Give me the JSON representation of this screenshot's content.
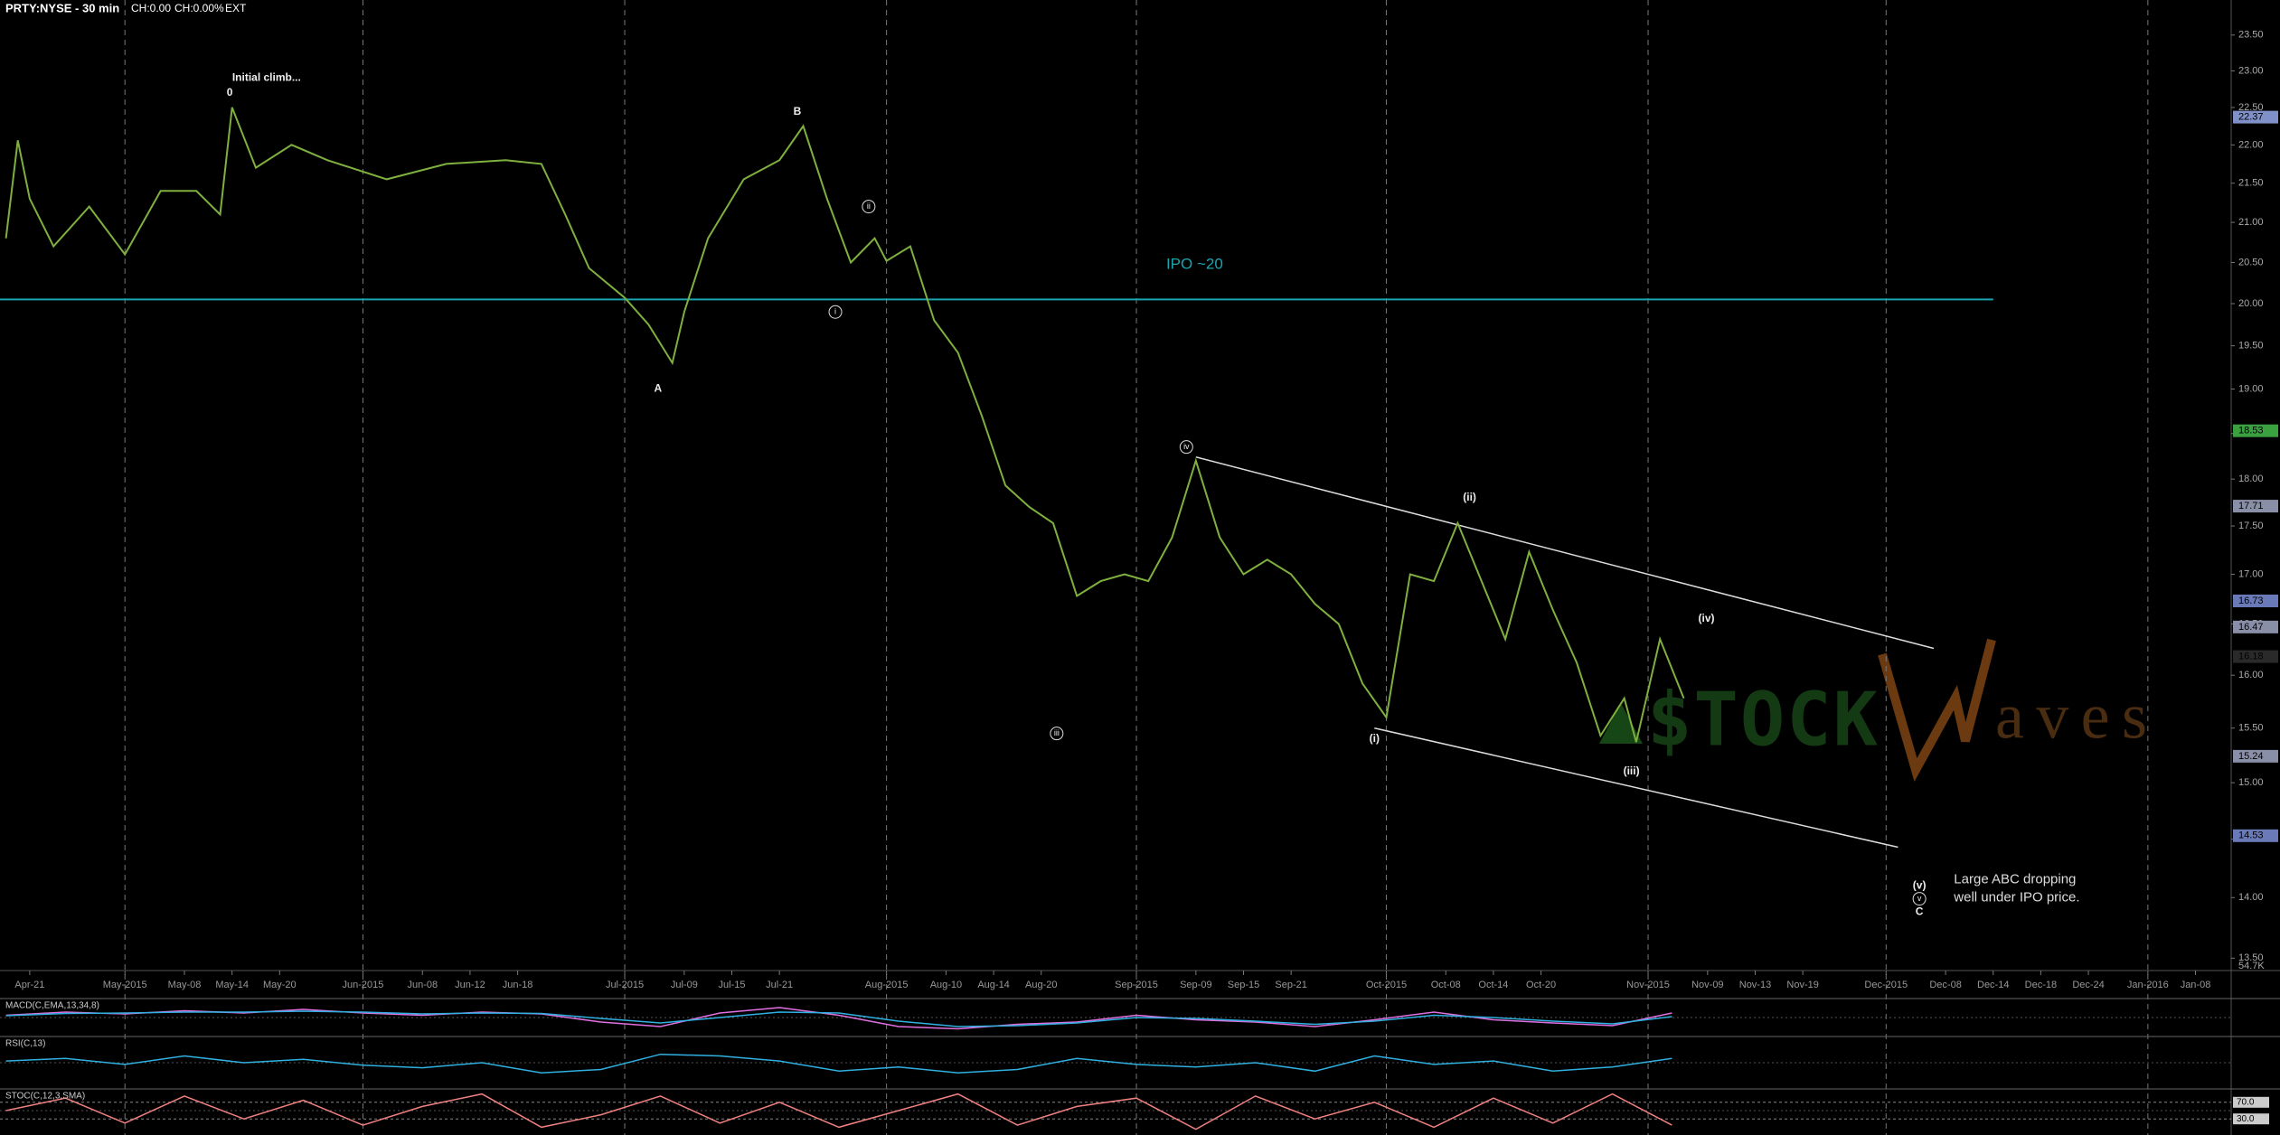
{
  "chart_data": {
    "type": "line",
    "title": "PRTY:NYSE - 30 min",
    "header_fields": [
      "CH:0.00",
      "CH:0.00%",
      "EXT"
    ],
    "log_scale": true,
    "xgrid": true,
    "color": "#7fb03f",
    "xlim": [
      -2.5,
      185
    ],
    "ylim": [
      13.4,
      24
    ],
    "xticks": [
      {
        "value": 0,
        "label": "Apr-21"
      },
      {
        "value": 8,
        "label": "May-2015"
      },
      {
        "value": 13,
        "label": "May-08"
      },
      {
        "value": 17,
        "label": "May-14"
      },
      {
        "value": 21,
        "label": "May-20"
      },
      {
        "value": 28,
        "label": "Jun-2015"
      },
      {
        "value": 33,
        "label": "Jun-08"
      },
      {
        "value": 37,
        "label": "Jun-12"
      },
      {
        "value": 41,
        "label": "Jun-18"
      },
      {
        "value": 50,
        "label": "Jul-2015"
      },
      {
        "value": 55,
        "label": "Jul-09"
      },
      {
        "value": 59,
        "label": "Jul-15"
      },
      {
        "value": 63,
        "label": "Jul-21"
      },
      {
        "value": 72,
        "label": "Aug-2015"
      },
      {
        "value": 77,
        "label": "Aug-10"
      },
      {
        "value": 81,
        "label": "Aug-14"
      },
      {
        "value": 85,
        "label": "Aug-20"
      },
      {
        "value": 93,
        "label": "Sep-2015"
      },
      {
        "value": 98,
        "label": "Sep-09"
      },
      {
        "value": 102,
        "label": "Sep-15"
      },
      {
        "value": 106,
        "label": "Sep-21"
      },
      {
        "value": 114,
        "label": "Oct-2015"
      },
      {
        "value": 119,
        "label": "Oct-08"
      },
      {
        "value": 123,
        "label": "Oct-14"
      },
      {
        "value": 127,
        "label": "Oct-20"
      },
      {
        "value": 136,
        "label": "Nov-2015"
      },
      {
        "value": 141,
        "label": "Nov-09"
      },
      {
        "value": 145,
        "label": "Nov-13"
      },
      {
        "value": 149,
        "label": "Nov-19"
      },
      {
        "value": 156,
        "label": "Dec-2015"
      },
      {
        "value": 161,
        "label": "Dec-08"
      },
      {
        "value": 165,
        "label": "Dec-14"
      },
      {
        "value": 169,
        "label": "Dec-18"
      },
      {
        "value": 173,
        "label": "Dec-24"
      },
      {
        "value": 178,
        "label": "Jan-2016"
      },
      {
        "value": 182,
        "label": "Jan-08"
      }
    ],
    "yticks": [
      {
        "value": 13.5,
        "label": "13.50"
      },
      {
        "value": 14,
        "label": "14.00"
      },
      {
        "value": 14.5,
        "label": "14.50"
      },
      {
        "value": 15,
        "label": "15.00"
      },
      {
        "value": 15.5,
        "label": "15.50"
      },
      {
        "value": 16,
        "label": "16.00"
      },
      {
        "value": 16.5,
        "label": "16.50"
      },
      {
        "value": 17,
        "label": "17.00"
      },
      {
        "value": 17.5,
        "label": "17.50"
      },
      {
        "value": 18,
        "label": "18.00"
      },
      {
        "value": 18.5,
        "label": "18.50"
      },
      {
        "value": 19,
        "label": "19.00"
      },
      {
        "value": 19.5,
        "label": "19.50"
      },
      {
        "value": 20,
        "label": "20.00"
      },
      {
        "value": 20.5,
        "label": "20.50"
      },
      {
        "value": 21,
        "label": "21.00"
      },
      {
        "value": 21.5,
        "label": "21.50"
      },
      {
        "value": 22,
        "label": "22.00"
      },
      {
        "value": 22.5,
        "label": "22.50"
      },
      {
        "value": 23,
        "label": "23.00"
      },
      {
        "value": 23.5,
        "label": "23.50"
      }
    ],
    "x": [
      -2,
      -1,
      0,
      2,
      5,
      8,
      11,
      14,
      16,
      17,
      19,
      22,
      25,
      30,
      35,
      40,
      43,
      45,
      47,
      50,
      52,
      54,
      55,
      57,
      60,
      63,
      65,
      67,
      69,
      71,
      72,
      74,
      76,
      78,
      80,
      82,
      84,
      86,
      88,
      90,
      92,
      94,
      96,
      98,
      100,
      102,
      104,
      106,
      108,
      110,
      112,
      114,
      116,
      118,
      120,
      122,
      124,
      126,
      128,
      130,
      132,
      134,
      135,
      137,
      139
    ],
    "values": [
      20.8,
      22.06,
      21.3,
      20.7,
      21.2,
      20.6,
      21.4,
      21.4,
      21.1,
      22.5,
      21.7,
      22.0,
      21.8,
      21.55,
      21.75,
      21.8,
      21.75,
      21.1,
      20.43,
      20.07,
      19.75,
      19.3,
      19.9,
      20.8,
      21.55,
      21.8,
      22.25,
      21.3,
      20.5,
      20.8,
      20.52,
      20.7,
      19.8,
      19.42,
      18.7,
      17.93,
      17.7,
      17.53,
      16.78,
      16.93,
      17.0,
      16.93,
      17.38,
      18.2,
      17.38,
      17.0,
      17.15,
      17.0,
      16.7,
      16.5,
      15.92,
      15.6,
      17.0,
      16.93,
      17.53,
      16.93,
      16.35,
      17.23,
      16.64,
      16.12,
      15.43,
      15.78,
      15.37,
      16.35,
      15.78
    ],
    "price_markers": [
      {
        "value": 22.37,
        "color": "#8090c8"
      },
      {
        "value": 18.53,
        "color": "#3aa040"
      },
      {
        "value": 17.71,
        "color": "#8a8fa8"
      },
      {
        "value": 16.73,
        "color": "#6a7ab8"
      },
      {
        "value": 16.47,
        "color": "#8a8fa8"
      },
      {
        "value": 16.18,
        "color": "#2a2a2a"
      },
      {
        "value": 15.24,
        "color": "#8a8fa8"
      },
      {
        "value": 14.53,
        "color": "#6a7ab8"
      }
    ],
    "volume_label": "54.7K",
    "ipo_line": {
      "value": 20.05,
      "x_end": 165,
      "color": "#1aa6b0",
      "label": "IPO ~20",
      "label_x": 95.5,
      "label_y": 20.47
    },
    "channel": [
      {
        "x": [
          98,
          160
        ],
        "values": [
          18.24,
          16.26
        ]
      },
      {
        "x": [
          113,
          157
        ],
        "values": [
          15.5,
          14.43
        ]
      }
    ],
    "annotations": [
      {
        "text": "Initial climb...",
        "x": 19.9,
        "y": 22.9
      },
      {
        "text": "0",
        "x": 16.8,
        "y": 22.7
      },
      {
        "text": "B",
        "x": 64.5,
        "y": 22.44
      },
      {
        "text": "A",
        "x": 52.8,
        "y": 19.0
      },
      {
        "text": "i",
        "x": 67.7,
        "y": 19.9,
        "circled": true
      },
      {
        "text": "ii",
        "x": 70.5,
        "y": 21.2,
        "circled": true
      },
      {
        "text": "iii",
        "x": 86.3,
        "y": 15.45,
        "circled": true
      },
      {
        "text": "iv",
        "x": 97.2,
        "y": 18.35,
        "circled": true
      },
      {
        "text": "(i)",
        "x": 113,
        "y": 15.4
      },
      {
        "text": "(ii)",
        "x": 121,
        "y": 17.8
      },
      {
        "text": "(iii)",
        "x": 134.6,
        "y": 15.1
      },
      {
        "text": "(iv)",
        "x": 140.9,
        "y": 16.55
      },
      {
        "text": "(v)",
        "x": 158.8,
        "y": 14.1
      },
      {
        "text": "v",
        "x": 158.8,
        "y": 13.99,
        "circled": true
      },
      {
        "text": "C",
        "x": 158.8,
        "y": 13.88
      }
    ],
    "note": {
      "lines": [
        "Large ABC dropping",
        "well under IPO price."
      ],
      "x": 161.7,
      "y": 14.15
    },
    "watermark": {
      "left": "$TOCK",
      "right": "aves"
    },
    "indicator_x": [
      -2,
      3,
      8,
      13,
      18,
      23,
      28,
      33,
      38,
      43,
      48,
      53,
      58,
      63,
      68,
      73,
      78,
      83,
      88,
      93,
      98,
      103,
      108,
      113,
      118,
      123,
      128,
      133,
      138
    ],
    "indicators": [
      {
        "label": "MACD(C,EMA,13,34,8)",
        "ylim": [
          -0.4,
          0.4
        ],
        "lines": [
          {
            "color": "#e070e0",
            "values": [
              0.05,
              0.12,
              0.08,
              0.15,
              0.1,
              0.18,
              0.1,
              0.05,
              0.12,
              0.08,
              -0.1,
              -0.2,
              0.1,
              0.22,
              0.05,
              -0.2,
              -0.25,
              -0.15,
              -0.1,
              0.05,
              -0.05,
              -0.1,
              -0.2,
              -0.05,
              0.12,
              -0.05,
              -0.12,
              -0.18,
              0.1
            ]
          },
          {
            "color": "#30b0e0",
            "values": [
              0.04,
              0.09,
              0.1,
              0.12,
              0.12,
              0.14,
              0.12,
              0.08,
              0.1,
              0.09,
              -0.02,
              -0.12,
              0,
              0.12,
              0.1,
              -0.08,
              -0.2,
              -0.18,
              -0.12,
              0,
              -0.02,
              -0.08,
              -0.15,
              -0.08,
              0.05,
              0,
              -0.08,
              -0.14,
              0.02
            ]
          }
        ]
      },
      {
        "label": "RSI(C,13)",
        "ylim": [
          20,
          80
        ],
        "lines": [
          {
            "color": "#30b0e0",
            "values": [
              52,
              55,
              48,
              58,
              50,
              54,
              47,
              44,
              50,
              38,
              42,
              60,
              58,
              52,
              40,
              45,
              38,
              42,
              55,
              48,
              45,
              50,
              40,
              58,
              48,
              52,
              40,
              45,
              55
            ]
          }
        ]
      },
      {
        "label": "STOC(C,12,3,SMA)",
        "ylim": [
          0,
          100
        ],
        "levels": [
          {
            "value": 70,
            "label": "70.0"
          },
          {
            "value": 30,
            "label": "30.0"
          }
        ],
        "lines": [
          {
            "color": "#f08080",
            "values": [
              50,
              80,
              20,
              85,
              30,
              75,
              15,
              60,
              90,
              10,
              40,
              85,
              20,
              70,
              10,
              50,
              90,
              15,
              60,
              80,
              5,
              85,
              30,
              70,
              10,
              80,
              20,
              90,
              15
            ]
          }
        ]
      }
    ]
  }
}
